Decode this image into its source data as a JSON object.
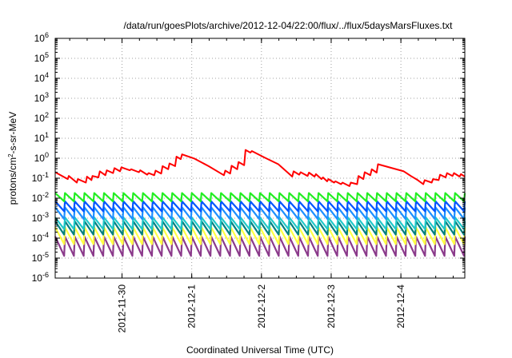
{
  "chart_data": {
    "type": "line",
    "title": "/data/run/goesPlots/archive/2012-12-04/22:00/flux/../flux/5daysMarsFluxes.txt",
    "xlabel": "Coordinated Universal Time (UTC)",
    "ylabel": {
      "base": "protons/cm",
      "sup": "2",
      "rest": "-s-sr-MeV"
    },
    "yscale": "log",
    "ylim_exp": [
      -6,
      6
    ],
    "xlim_days": [
      "2012-11-29 01:00",
      "2012-12-04 22:00"
    ],
    "xticks": [
      "2012-11-30",
      "2012-12-1",
      "2012-12-2",
      "2012-12-3",
      "2012-12-4"
    ],
    "grid": true,
    "legend": "none",
    "red_series": {
      "color": "#ff0000",
      "points": [
        [
          0.0,
          0.2
        ],
        [
          0.18,
          0.09
        ],
        [
          0.195,
          0.13
        ],
        [
          0.31,
          0.06
        ],
        [
          0.325,
          0.09
        ],
        [
          0.44,
          0.06
        ],
        [
          0.455,
          0.12
        ],
        [
          0.52,
          0.08
        ],
        [
          0.535,
          0.13
        ],
        [
          0.62,
          0.11
        ],
        [
          0.64,
          0.22
        ],
        [
          0.72,
          0.14
        ],
        [
          0.74,
          0.25
        ],
        [
          0.83,
          0.18
        ],
        [
          0.85,
          0.32
        ],
        [
          0.93,
          0.22
        ],
        [
          0.95,
          0.35
        ],
        [
          1.07,
          0.25
        ],
        [
          1.09,
          0.28
        ],
        [
          1.2,
          0.2
        ],
        [
          1.22,
          0.25
        ],
        [
          1.32,
          0.15
        ],
        [
          1.34,
          0.18
        ],
        [
          1.42,
          0.14
        ],
        [
          1.44,
          0.24
        ],
        [
          1.52,
          0.17
        ],
        [
          1.54,
          0.4
        ],
        [
          1.62,
          0.28
        ],
        [
          1.64,
          0.55
        ],
        [
          1.72,
          0.4
        ],
        [
          1.74,
          1.2
        ],
        [
          1.8,
          0.9
        ],
        [
          1.82,
          1.55
        ],
        [
          2.0,
          0.95
        ],
        [
          2.2,
          0.4
        ],
        [
          2.42,
          0.14
        ],
        [
          2.44,
          0.24
        ],
        [
          2.51,
          0.17
        ],
        [
          2.53,
          0.42
        ],
        [
          2.61,
          0.28
        ],
        [
          2.63,
          0.65
        ],
        [
          2.71,
          0.45
        ],
        [
          2.73,
          2.6
        ],
        [
          2.8,
          1.9
        ],
        [
          2.82,
          2.3
        ],
        [
          3.0,
          1.1
        ],
        [
          3.2,
          0.5
        ],
        [
          3.4,
          0.12
        ],
        [
          3.42,
          0.22
        ],
        [
          3.5,
          0.15
        ],
        [
          3.52,
          0.2
        ],
        [
          3.62,
          0.13
        ],
        [
          3.64,
          0.19
        ],
        [
          3.72,
          0.12
        ],
        [
          3.74,
          0.16
        ],
        [
          3.82,
          0.09
        ],
        [
          3.84,
          0.11
        ],
        [
          3.9,
          0.07
        ],
        [
          3.92,
          0.09
        ],
        [
          4.0,
          0.06
        ],
        [
          4.02,
          0.07
        ],
        [
          4.1,
          0.05
        ],
        [
          4.12,
          0.06
        ],
        [
          4.22,
          0.04
        ],
        [
          4.24,
          0.06
        ],
        [
          4.33,
          0.05
        ],
        [
          4.35,
          0.13
        ],
        [
          4.42,
          0.09
        ],
        [
          4.44,
          0.2
        ],
        [
          4.52,
          0.14
        ],
        [
          4.54,
          0.28
        ],
        [
          4.61,
          0.19
        ],
        [
          4.63,
          0.5
        ],
        [
          5.0,
          0.22
        ],
        [
          5.1,
          0.13
        ],
        [
          5.2,
          0.08
        ],
        [
          5.28,
          0.05
        ],
        [
          5.3,
          0.08
        ],
        [
          5.4,
          0.06
        ],
        [
          5.42,
          0.09
        ],
        [
          5.5,
          0.08
        ],
        [
          5.52,
          0.15
        ],
        [
          5.6,
          0.11
        ],
        [
          5.62,
          0.18
        ],
        [
          5.7,
          0.13
        ],
        [
          5.72,
          0.18
        ],
        [
          5.8,
          0.12
        ],
        [
          5.82,
          0.16
        ],
        [
          5.875,
          0.12
        ]
      ]
    },
    "sawtooth_series": [
      {
        "color": "#22ee22",
        "peak": 0.018,
        "trough": 0.007
      },
      {
        "color": "#0055ff",
        "peak": 0.007,
        "trough": 0.0022
      },
      {
        "color": "#1e90ff",
        "peak": 0.0035,
        "trough": 0.0009
      },
      {
        "color": "#22c9c9",
        "peak": 0.0011,
        "trough": 0.00028
      },
      {
        "color": "#008080",
        "peak": 0.0007,
        "trough": 0.00015
      },
      {
        "color": "#ffff44",
        "peak": 0.00035,
        "trough": 5e-05
      },
      {
        "color": "#8b3a8b",
        "peak": 0.00012,
        "trough": 1.3e-05
      }
    ],
    "sawtooth_cycles": 42
  }
}
